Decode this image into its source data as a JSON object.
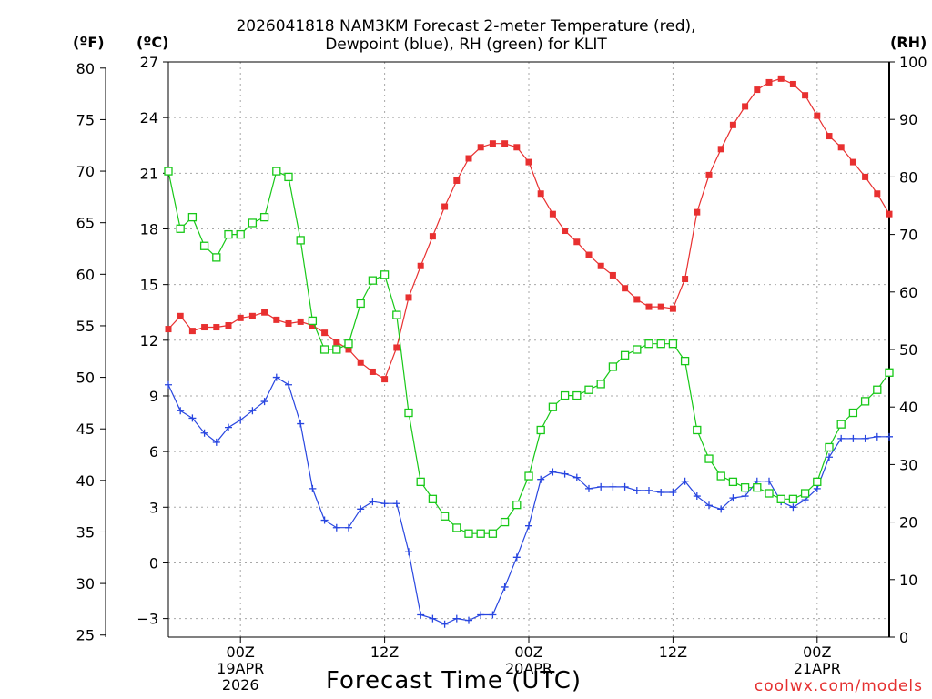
{
  "title": {
    "line1": "2026041818 NAM3KM Forecast 2-meter Temperature (red),",
    "line2": "Dewpoint (blue), RH (green) for KLIT"
  },
  "units": {
    "f": "(ºF)",
    "c": "(ºC)",
    "rh": "(RH)"
  },
  "credit": "coolwx.com/models",
  "colors": {
    "temperature": "#e83030",
    "dewpoint": "#2846e0",
    "rh": "#18c818"
  },
  "chart_data": {
    "type": "line",
    "title": "2026041818 NAM3KM Forecast 2-meter Temperature (red), Dewpoint (blue), RH (green) for KLIT",
    "xlabel": "Forecast Time (UTC)",
    "x_hours": [
      0,
      1,
      2,
      3,
      4,
      5,
      6,
      7,
      8,
      9,
      10,
      11,
      12,
      13,
      14,
      15,
      16,
      17,
      18,
      19,
      20,
      21,
      22,
      23,
      24,
      25,
      26,
      27,
      28,
      29,
      30,
      31,
      32,
      33,
      34,
      35,
      36,
      37,
      38,
      39,
      40,
      41,
      42,
      43,
      44,
      45,
      46,
      47,
      48,
      49,
      50,
      51,
      52,
      53,
      54,
      55,
      56,
      57,
      58,
      59,
      60
    ],
    "x_ticks": [
      {
        "hour": 6,
        "lines": [
          "00Z",
          "19APR",
          "2026"
        ]
      },
      {
        "hour": 18,
        "lines": [
          "12Z"
        ]
      },
      {
        "hour": 30,
        "lines": [
          "00Z",
          "20APR"
        ]
      },
      {
        "hour": 42,
        "lines": [
          "12Z"
        ]
      },
      {
        "hour": 54,
        "lines": [
          "00Z",
          "21APR"
        ]
      }
    ],
    "xlim": [
      0,
      60
    ],
    "left_axis_c": {
      "label": "(ºC)",
      "ylim": [
        -4,
        27
      ],
      "ticks": [
        -3,
        0,
        3,
        6,
        9,
        12,
        15,
        18,
        21,
        24,
        27
      ]
    },
    "left_axis_f": {
      "label": "(ºF)",
      "ticks": [
        25,
        30,
        35,
        40,
        45,
        50,
        55,
        60,
        65,
        70,
        75,
        80
      ]
    },
    "right_axis_rh": {
      "label": "(RH)",
      "ylim": [
        0,
        100
      ],
      "ticks": [
        0,
        10,
        20,
        30,
        40,
        50,
        60,
        70,
        80,
        90,
        100
      ]
    },
    "grid": true,
    "series": [
      {
        "name": "Temperature",
        "axis": "celsius",
        "marker": "filled-square",
        "color": "#e83030",
        "values": [
          12.6,
          13.3,
          12.5,
          12.7,
          12.7,
          12.8,
          13.2,
          13.3,
          13.5,
          13.1,
          12.9,
          13.0,
          12.8,
          12.4,
          11.9,
          11.5,
          10.8,
          10.3,
          9.9,
          11.6,
          14.3,
          16.0,
          17.6,
          19.2,
          20.6,
          21.8,
          22.4,
          22.6,
          22.6,
          22.4,
          21.6,
          19.9,
          18.8,
          17.9,
          17.3,
          16.6,
          16.0,
          15.5,
          14.8,
          14.2,
          13.8,
          13.8,
          13.7,
          15.3,
          18.9,
          20.9,
          22.3,
          23.6,
          24.6,
          25.5,
          25.9,
          26.1,
          25.8,
          25.2,
          24.1,
          23.0,
          22.4,
          21.6,
          20.8,
          19.9,
          18.8
        ]
      },
      {
        "name": "Dewpoint",
        "axis": "celsius",
        "marker": "plus",
        "color": "#2846e0",
        "values": [
          9.6,
          8.2,
          7.8,
          7.0,
          6.5,
          7.3,
          7.7,
          8.2,
          8.7,
          10.0,
          9.6,
          7.5,
          4.0,
          2.3,
          1.9,
          1.9,
          2.9,
          3.3,
          3.2,
          3.2,
          0.6,
          -2.8,
          -3.0,
          -3.3,
          -3.0,
          -3.1,
          -2.8,
          -2.8,
          -1.3,
          0.3,
          2.0,
          4.5,
          4.9,
          4.8,
          4.6,
          4.0,
          4.1,
          4.1,
          4.1,
          3.9,
          3.9,
          3.8,
          3.8,
          4.4,
          3.6,
          3.1,
          2.9,
          3.5,
          3.6,
          4.4,
          4.4,
          3.3,
          3.0,
          3.4,
          4.0,
          5.7,
          6.7,
          6.7,
          6.7,
          6.8,
          6.8
        ]
      },
      {
        "name": "RH",
        "axis": "rh",
        "marker": "open-square",
        "color": "#18c818",
        "values": [
          81,
          71,
          73,
          68,
          66,
          70,
          70,
          72,
          73,
          81,
          80,
          69,
          55,
          50,
          50,
          51,
          58,
          62,
          63,
          56,
          39,
          27,
          24,
          21,
          19,
          18,
          18,
          18,
          20,
          23,
          28,
          36,
          40,
          42,
          42,
          43,
          44,
          47,
          49,
          50,
          51,
          51,
          51,
          48,
          36,
          31,
          28,
          27,
          26,
          26,
          25,
          24,
          24,
          25,
          27,
          33,
          37,
          39,
          41,
          43,
          46
        ]
      }
    ]
  }
}
